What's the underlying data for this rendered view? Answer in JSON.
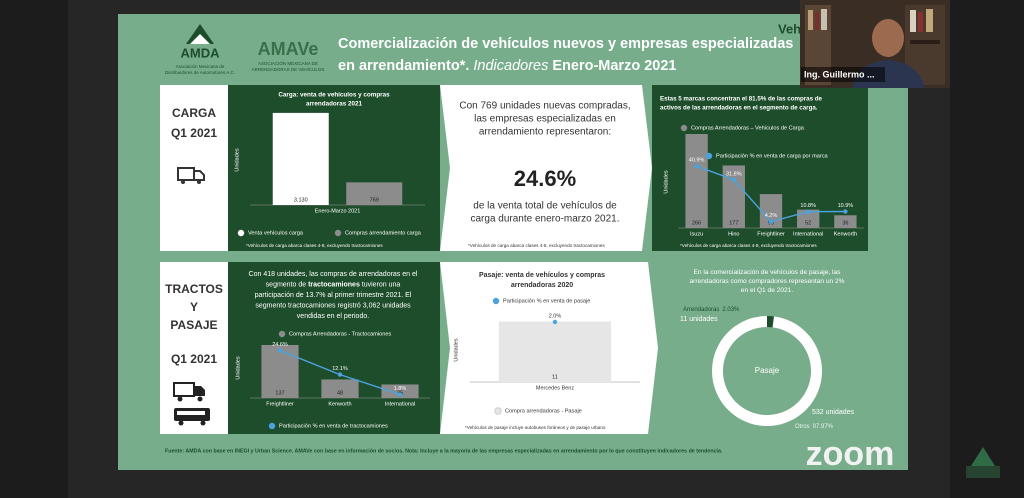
{
  "header": {
    "amda_logo": "AMDA",
    "amda_sub": [
      "Asociación Mexicana de",
      "Distribuidores de Automotores A.C."
    ],
    "amave_logo": "AMAVe",
    "amave_sub": [
      "ASOCIACIÓN MEXICANA DE",
      "ARRENDADORAS DE VEHÍCULOS"
    ],
    "title_line1": "Comercialización de vehículos nuevos y empresas especializadas",
    "title_line2": [
      "en arrendamiento*. ",
      "Indicadores",
      " Enero-Marzo 2021"
    ],
    "cut_text": "Veh"
  },
  "video": {
    "name": "Ing. Guillermo ..."
  },
  "carga": {
    "label": [
      "CARGA",
      "Q1 2021"
    ],
    "chart": {
      "type": "bar",
      "title": [
        "Carga: venta de vehículos  y compras",
        "arrendadoras 2021"
      ],
      "y_label": "Unidades",
      "categories": [
        "Enero-Marzo 2021"
      ],
      "series": [
        {
          "name": "Venta vehículos carga",
          "color": "#ffffff",
          "values": [
            3130
          ],
          "value_labels": [
            "3,130"
          ]
        },
        {
          "name": "Compras arrendamiento carga",
          "color": "#8c8c8c",
          "values": [
            769
          ]
        }
      ],
      "ylim": [
        0,
        3500
      ],
      "note": "*Vehículos de carga abarca clases 4-8, excluyendo tractocamiones"
    },
    "summary": {
      "intro": [
        "Con 769 unidades nuevas compradas,",
        "las empresas especializadas en",
        "arrendamiento representaron:"
      ],
      "big": "24.6%",
      "outro": [
        "de la venta total de vehículos de",
        "carga durante enero-marzo 2021."
      ],
      "note": "*Vehículos de carga abarca clases 4-8, excluyendo tractocamiones"
    },
    "brands_chart": {
      "type": "bar_line",
      "title": [
        "Estas 5 marcas concentran el 81.5% de las compras de",
        "activos de las arrendadoras en el segmento de carga."
      ],
      "y_label": "Unidades",
      "categories": [
        "Isuzu",
        "Hino",
        "Freightliner",
        "International",
        "Kenworth"
      ],
      "series": [
        {
          "name": "Compras Arrendadoras – Vehículos de Carga",
          "color": "#8c8c8c",
          "values": [
            266,
            177,
            96,
            52,
            36
          ]
        },
        {
          "name": "Participación % en venta de carga por marca",
          "color": "#4aa3df",
          "axis": "y2",
          "values": [
            40.9,
            31.8,
            4.2,
            10.8,
            10.9
          ],
          "value_labels": [
            "40.9%",
            "31.8%",
            "4.2%",
            "10.8%",
            "10.9%"
          ]
        }
      ],
      "ylim": [
        0,
        300
      ],
      "y2lim": [
        0,
        70
      ],
      "note": "*Vehículos de carga abarca clases 4-8, excluyendo tractocamiones"
    }
  },
  "tractos": {
    "label": [
      "TRACTOS",
      "Y",
      "PASAJE",
      "Q1 2021"
    ],
    "text": [
      "Con 418 unidades, las compras de arrendadoras en el",
      [
        "segmento de ",
        "tractocamiones",
        " tuvieron una"
      ],
      "participación de 13.7% al primer trimestre 2021. El",
      "segmento tractocamiones registró 3,062 unidades",
      "vendidas en el periodo."
    ],
    "chart": {
      "type": "bar_line",
      "y_label": "Unidades",
      "categories": [
        "Freightliner",
        "Kenworth",
        "International"
      ],
      "series": [
        {
          "name": "Compras Arrendadoras - Tractocamiones",
          "color": "#8c8c8c",
          "values": [
            137,
            48,
            35
          ]
        },
        {
          "name": "Participación % en venta de tractocamiones",
          "color": "#4aa3df",
          "axis": "y2",
          "values": [
            24.6,
            12.1,
            1.8
          ],
          "value_labels": [
            "24.6%",
            "12.1%",
            "1.8%"
          ]
        }
      ],
      "ylim": [
        0,
        150
      ],
      "y2lim": [
        0,
        30
      ]
    },
    "pasaje_chart": {
      "type": "bar_line",
      "title": [
        "Pasaje: venta de vehículos y compras",
        "arrendadoras 2020"
      ],
      "y_label": "Unidades",
      "categories": [
        "Mercedes Benz"
      ],
      "series": [
        {
          "name": "Compra arrendadoras - Pasaje",
          "color": "#e6e6e6",
          "values": [
            11
          ]
        },
        {
          "name": "Participación % en venta de pasaje",
          "color": "#4aa3df",
          "axis": "y2",
          "values": [
            2.0
          ],
          "value_labels": [
            "2.0%"
          ]
        }
      ],
      "ylim": [
        0,
        12
      ],
      "y2lim": [
        0,
        2.2
      ],
      "note": "*Vehículos de pasaje incluye autobuses foráneos y de pasaje urbano"
    },
    "pie_chart": {
      "type": "pie",
      "title": [
        "En la comercialización de vehículos de pasaje, las",
        "arrendadoras como compradores representan un 2%",
        "en el Q1 de 2021."
      ],
      "center_label": "Pasaje",
      "categories": [
        "Arrendadoras",
        "Otros"
      ],
      "values": [
        2.03,
        97.97
      ],
      "value_labels": [
        "2.03%",
        "97.97%"
      ],
      "units": [
        11,
        532
      ],
      "unit_labels": [
        "11 unidades",
        "532 unidades"
      ],
      "colors": [
        "#1e4d2b",
        "#ffffff"
      ]
    }
  },
  "footer": {
    "source": "Fuente: AMDA con base en INEGI y Urban Science. AMAVe con base en información de socios. Nota: Incluye a la mayoría de las empresas especializadas en arrendamiento por lo que constituyen indicadores de tendencia.",
    "zoom": "zoom"
  }
}
